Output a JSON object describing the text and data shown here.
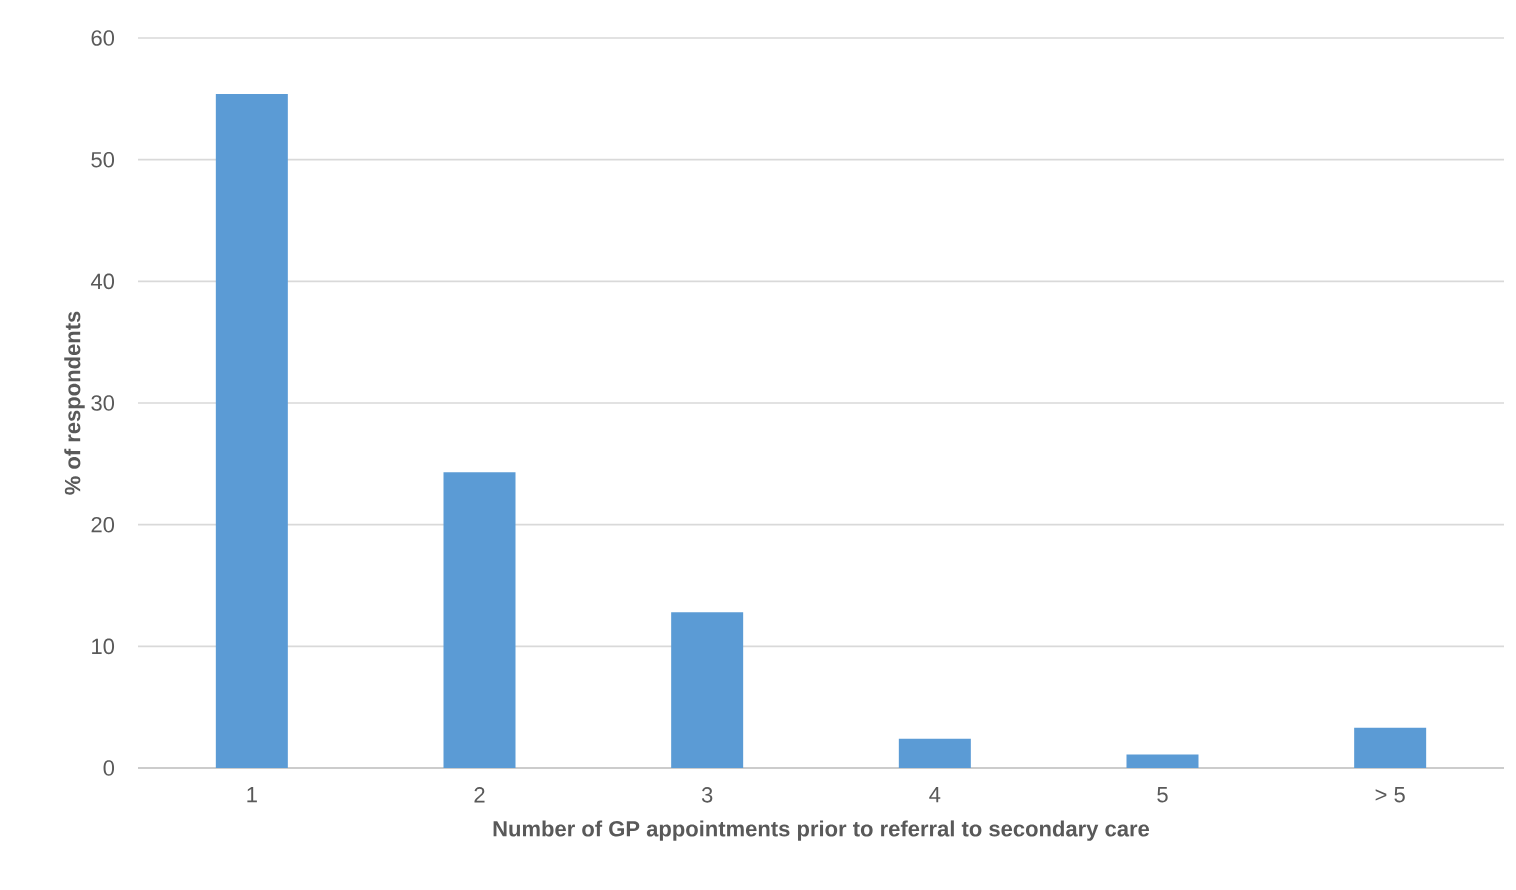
{
  "chart_data": {
    "type": "bar",
    "xlabel": "Number of GP appointments prior to referral to secondary care",
    "ylabel": "% of respondents",
    "categories": [
      "1",
      "2",
      "3",
      "4",
      "5",
      "> 5"
    ],
    "values": [
      55.4,
      24.3,
      12.8,
      2.4,
      1.1,
      3.3
    ],
    "color": "#5b9bd5",
    "ylim": [
      0,
      60
    ],
    "yticks": [
      0,
      10,
      20,
      30,
      40,
      50,
      60
    ],
    "grid": "y"
  }
}
